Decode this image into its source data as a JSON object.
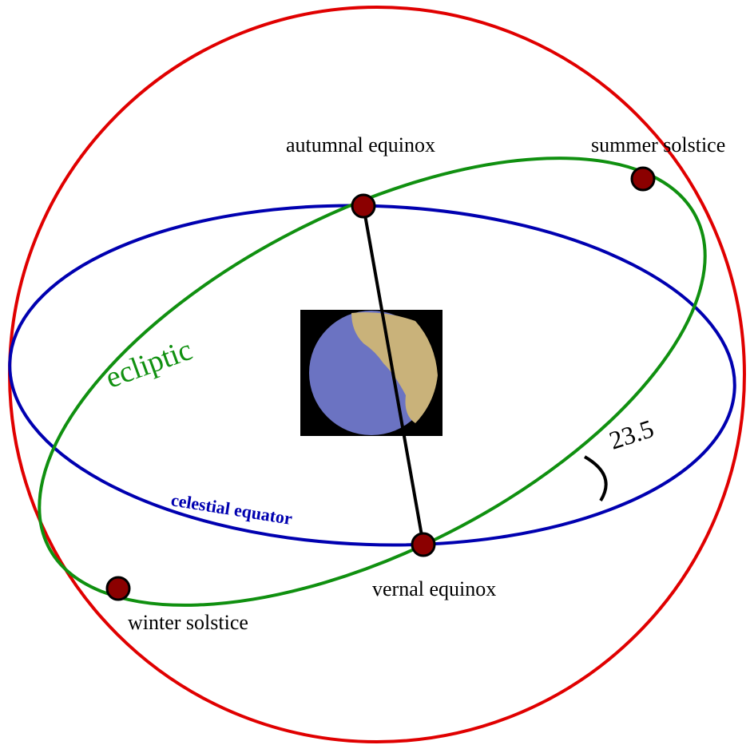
{
  "labels": {
    "autumnal_equinox": "autumnal equinox",
    "summer_solstice": "summer solstice",
    "ecliptic": "ecliptic",
    "angle": "23.5",
    "celestial_equator": "celestial equator",
    "vernal_equinox": "vernal equinox",
    "winter_solstice": "winter solstice"
  }
}
